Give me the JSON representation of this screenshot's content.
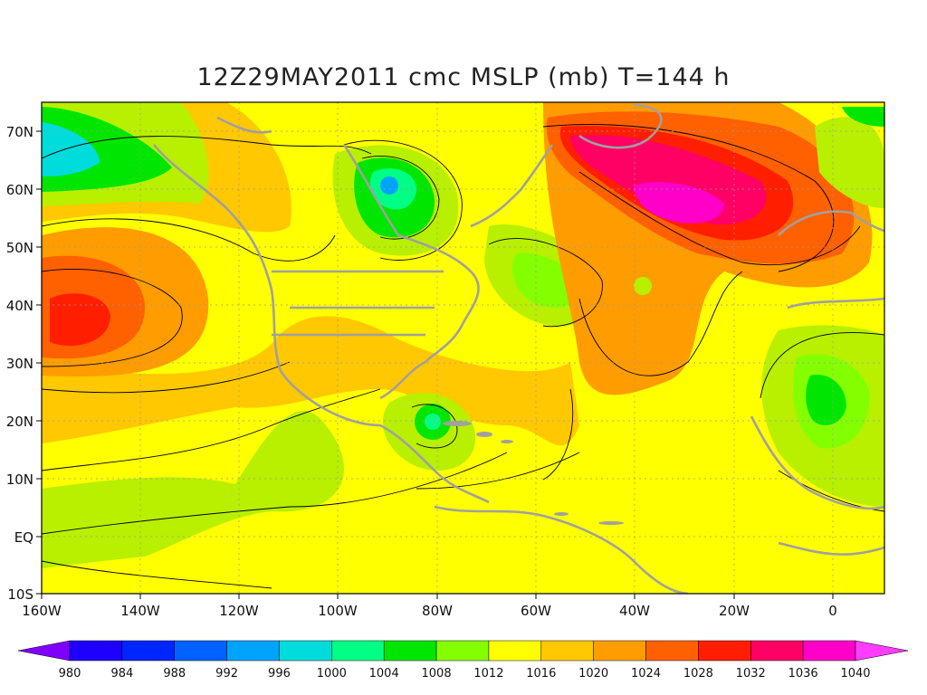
{
  "title": "12Z29MAY2011 cmc MSLP (mb) T=144 h",
  "map": {
    "lat_labels": [
      "70N",
      "60N",
      "50N",
      "40N",
      "30N",
      "20N",
      "10N",
      "EQ",
      "10S"
    ],
    "lon_labels": [
      "160W",
      "140W",
      "120W",
      "100W",
      "80W",
      "60W",
      "40W",
      "20W",
      "0"
    ],
    "land_color": "#a0a0a0",
    "contour_color": "#000000"
  },
  "colorbar": {
    "levels": [
      "980",
      "984",
      "988",
      "992",
      "996",
      "1000",
      "1004",
      "1008",
      "1012",
      "1016",
      "1020",
      "1024",
      "1028",
      "1032",
      "1036",
      "1040"
    ],
    "colors": [
      "#7f00ff",
      "#1e00ff",
      "#0026ff",
      "#0062ff",
      "#00a4ff",
      "#00dcdc",
      "#00ff84",
      "#00e600",
      "#84ff00",
      "#ffff00",
      "#ffc800",
      "#ff9c00",
      "#ff6000",
      "#ff1e00",
      "#ff0064",
      "#ff00c8",
      "#ff3cff"
    ]
  }
}
